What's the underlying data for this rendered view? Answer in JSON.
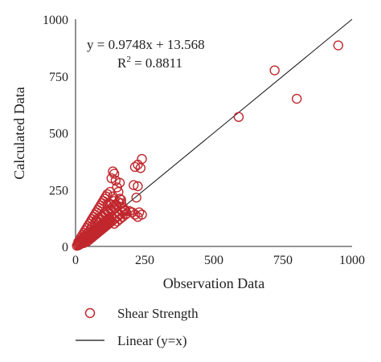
{
  "chart_data": {
    "type": "scatter",
    "xlabel": "Observation Data",
    "ylabel": "Calculated Data",
    "xlim": [
      0,
      1000
    ],
    "ylim": [
      0,
      1000
    ],
    "x_ticks": [
      "0",
      "250",
      "500",
      "750",
      "1000"
    ],
    "y_ticks": [
      "0",
      "250",
      "500",
      "750",
      "1000"
    ],
    "tick_values": [
      0,
      250,
      500,
      750,
      1000
    ],
    "grid": false,
    "legend_position": "bottom",
    "annotations": {
      "equation": "y = 0.9748x + 13.568",
      "r2_prefix": "R",
      "r2_sup": "2",
      "r2_suffix": " = 0.8811"
    },
    "series": [
      {
        "name": "Shear Strength",
        "marker": "open-circle",
        "color": "#c0272d",
        "points": [
          [
            5,
            3
          ],
          [
            8,
            10
          ],
          [
            10,
            5
          ],
          [
            12,
            15
          ],
          [
            15,
            8
          ],
          [
            18,
            20
          ],
          [
            20,
            12
          ],
          [
            22,
            25
          ],
          [
            25,
            18
          ],
          [
            28,
            30
          ],
          [
            30,
            22
          ],
          [
            32,
            35
          ],
          [
            35,
            28
          ],
          [
            38,
            40
          ],
          [
            40,
            32
          ],
          [
            42,
            45
          ],
          [
            45,
            38
          ],
          [
            48,
            50
          ],
          [
            50,
            42
          ],
          [
            52,
            55
          ],
          [
            55,
            48
          ],
          [
            58,
            60
          ],
          [
            60,
            52
          ],
          [
            62,
            65
          ],
          [
            65,
            58
          ],
          [
            68,
            70
          ],
          [
            70,
            62
          ],
          [
            72,
            75
          ],
          [
            75,
            68
          ],
          [
            78,
            80
          ],
          [
            80,
            72
          ],
          [
            82,
            85
          ],
          [
            85,
            78
          ],
          [
            88,
            90
          ],
          [
            90,
            82
          ],
          [
            92,
            95
          ],
          [
            95,
            88
          ],
          [
            98,
            100
          ],
          [
            100,
            92
          ],
          [
            102,
            105
          ],
          [
            105,
            98
          ],
          [
            108,
            110
          ],
          [
            110,
            102
          ],
          [
            112,
            115
          ],
          [
            115,
            108
          ],
          [
            118,
            120
          ],
          [
            120,
            112
          ],
          [
            122,
            125
          ],
          [
            125,
            118
          ],
          [
            128,
            130
          ],
          [
            20,
            40
          ],
          [
            25,
            50
          ],
          [
            30,
            60
          ],
          [
            35,
            70
          ],
          [
            40,
            80
          ],
          [
            45,
            90
          ],
          [
            50,
            100
          ],
          [
            55,
            110
          ],
          [
            60,
            120
          ],
          [
            65,
            130
          ],
          [
            70,
            140
          ],
          [
            75,
            150
          ],
          [
            80,
            160
          ],
          [
            85,
            170
          ],
          [
            90,
            180
          ],
          [
            95,
            190
          ],
          [
            100,
            200
          ],
          [
            105,
            210
          ],
          [
            110,
            220
          ],
          [
            115,
            230
          ],
          [
            40,
            20
          ],
          [
            50,
            30
          ],
          [
            60,
            40
          ],
          [
            70,
            50
          ],
          [
            80,
            60
          ],
          [
            90,
            70
          ],
          [
            100,
            80
          ],
          [
            110,
            90
          ],
          [
            120,
            100
          ],
          [
            130,
            110
          ],
          [
            140,
            120
          ],
          [
            150,
            130
          ],
          [
            160,
            140
          ],
          [
            170,
            150
          ],
          [
            180,
            160
          ],
          [
            140,
            100
          ],
          [
            150,
            110
          ],
          [
            160,
            120
          ],
          [
            170,
            130
          ],
          [
            180,
            140
          ],
          [
            60,
            90
          ],
          [
            70,
            100
          ],
          [
            80,
            110
          ],
          [
            90,
            120
          ],
          [
            100,
            130
          ],
          [
            110,
            140
          ],
          [
            120,
            150
          ],
          [
            130,
            160
          ],
          [
            140,
            170
          ],
          [
            150,
            180
          ],
          [
            75,
            115
          ],
          [
            85,
            125
          ],
          [
            95,
            135
          ],
          [
            105,
            145
          ],
          [
            115,
            155
          ],
          [
            125,
            165
          ],
          [
            135,
            175
          ],
          [
            145,
            185
          ],
          [
            155,
            195
          ],
          [
            165,
            205
          ],
          [
            30,
            15
          ],
          [
            45,
            25
          ],
          [
            55,
            35
          ],
          [
            65,
            45
          ],
          [
            75,
            55
          ],
          [
            85,
            65
          ],
          [
            95,
            75
          ],
          [
            105,
            85
          ],
          [
            115,
            95
          ],
          [
            125,
            105
          ],
          [
            10,
            20
          ],
          [
            15,
            25
          ],
          [
            20,
            30
          ],
          [
            25,
            35
          ],
          [
            30,
            40
          ],
          [
            35,
            45
          ],
          [
            40,
            55
          ],
          [
            45,
            60
          ],
          [
            50,
            65
          ],
          [
            55,
            75
          ],
          [
            130,
            300
          ],
          [
            140,
            320
          ],
          [
            135,
            330
          ],
          [
            145,
            290
          ],
          [
            150,
            260
          ],
          [
            160,
            280
          ],
          [
            125,
            240
          ],
          [
            135,
            220
          ],
          [
            140,
            200
          ],
          [
            155,
            240
          ],
          [
            115,
            180
          ],
          [
            120,
            190
          ],
          [
            130,
            185
          ],
          [
            160,
            210
          ],
          [
            165,
            190
          ],
          [
            170,
            175
          ],
          [
            175,
            165
          ],
          [
            180,
            155
          ],
          [
            185,
            145
          ],
          [
            195,
            155
          ],
          [
            205,
            150
          ],
          [
            215,
            140
          ],
          [
            225,
            130
          ],
          [
            230,
            150
          ],
          [
            240,
            140
          ],
          [
            220,
            215
          ],
          [
            210,
            270
          ],
          [
            215,
            350
          ],
          [
            225,
            360
          ],
          [
            235,
            345
          ],
          [
            240,
            385
          ],
          [
            225,
            265
          ],
          [
            590,
            570
          ],
          [
            720,
            775
          ],
          [
            800,
            650
          ],
          [
            950,
            885
          ]
        ]
      },
      {
        "name": "Linear (y=x)",
        "type": "line",
        "color": "#111111",
        "points": [
          [
            0,
            0
          ],
          [
            1000,
            1000
          ]
        ]
      }
    ]
  }
}
